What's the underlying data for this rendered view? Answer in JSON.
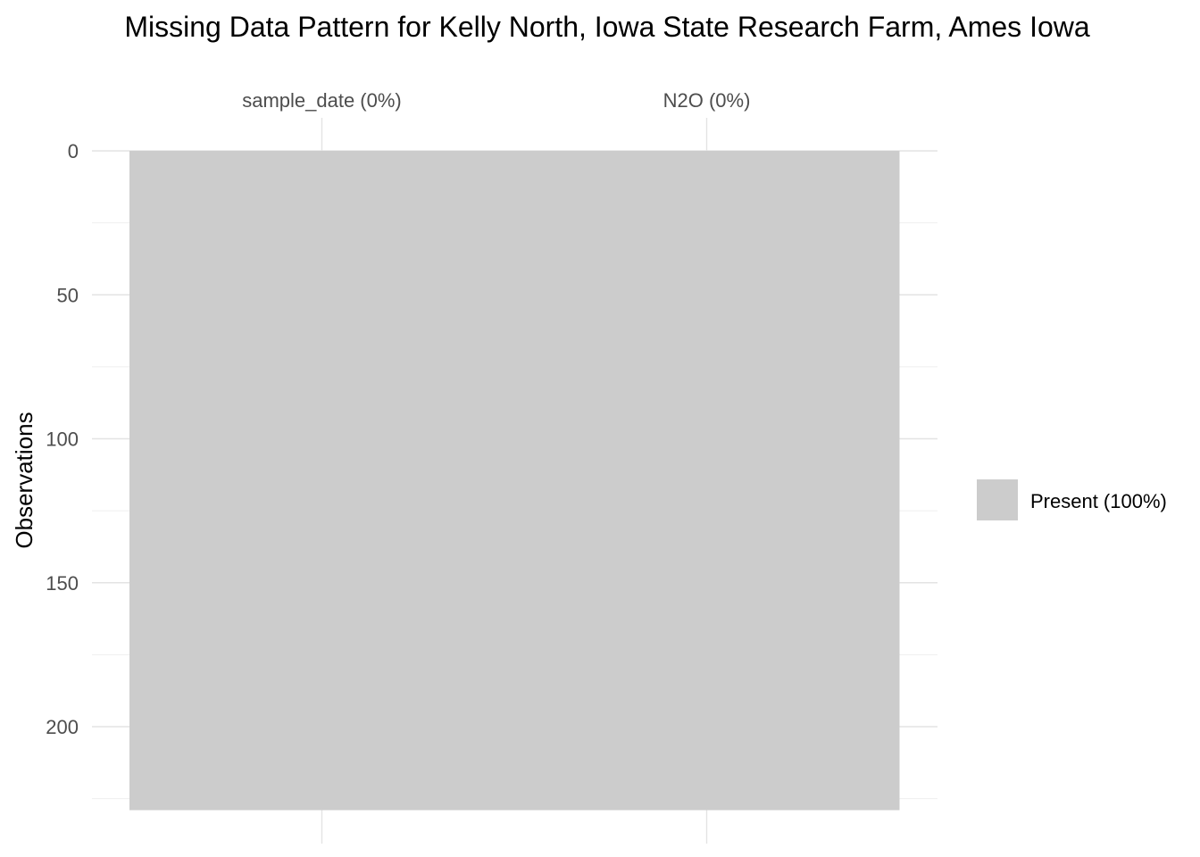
{
  "chart_data": {
    "type": "heatmap",
    "title": "Missing Data Pattern for Kelly North, Iowa State Research Farm, Ames Iowa",
    "ylabel": "Observations",
    "columns": [
      "sample_date (0%)",
      "N2O (0%)"
    ],
    "y_ticks": [
      "0",
      "50",
      "100",
      "150",
      "200"
    ],
    "n_observations": 229,
    "ylim": [
      0,
      229
    ],
    "series": [
      {
        "column": "sample_date",
        "missing_pct": 0,
        "present_pct": 100
      },
      {
        "column": "N2O",
        "missing_pct": 0,
        "present_pct": 100
      }
    ],
    "legend": {
      "label": "Present (100%)",
      "color": "#cccccc",
      "position": "right"
    },
    "grid": true
  }
}
